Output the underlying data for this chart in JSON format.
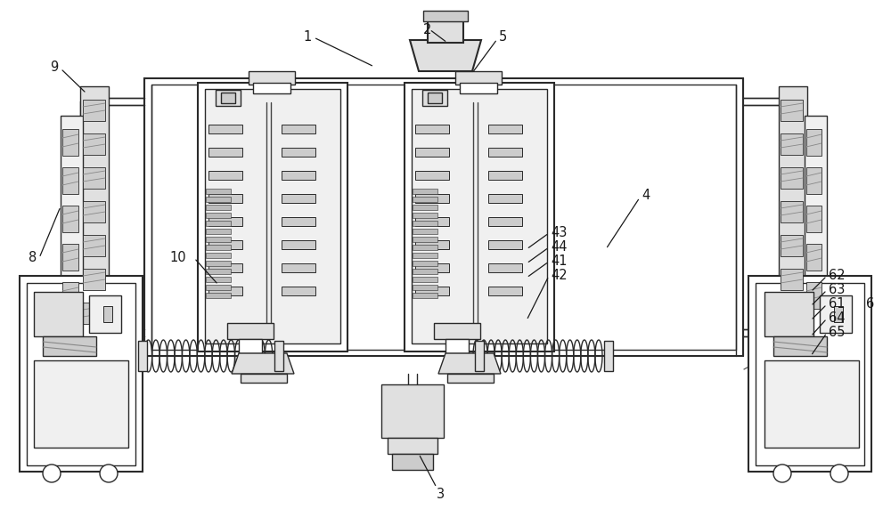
{
  "bg_color": "#ffffff",
  "lc": "#2a2a2a",
  "lc_light": "#555555",
  "fill_gray1": "#f0f0f0",
  "fill_gray2": "#e0e0e0",
  "fill_gray3": "#cccccc",
  "fill_gray4": "#bbbbbb",
  "fill_white": "#ffffff"
}
